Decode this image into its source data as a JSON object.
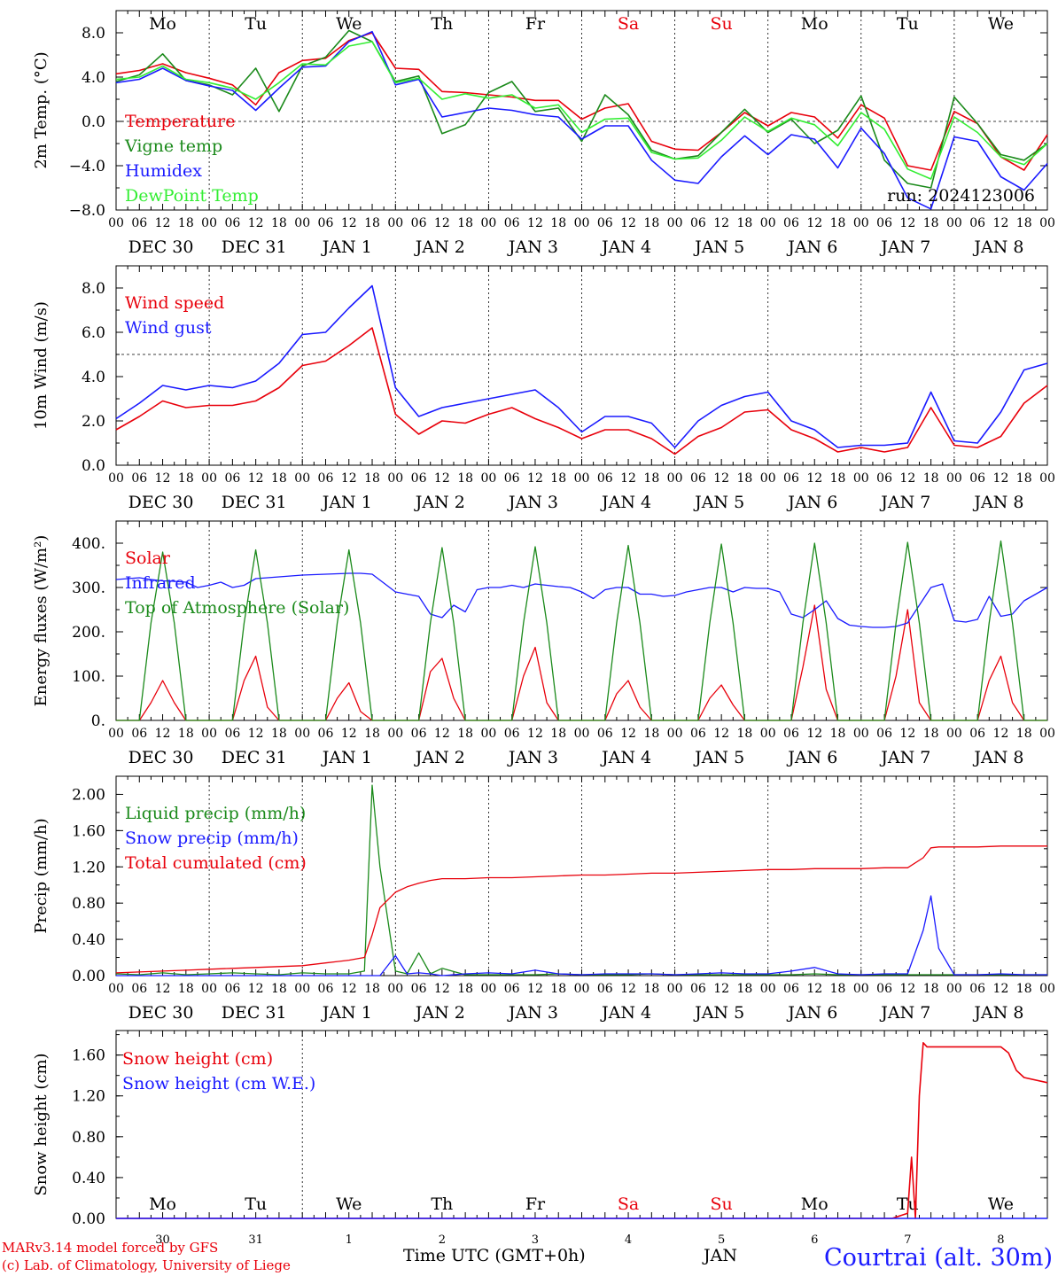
{
  "footer": {
    "model": "MARv3.14 model forced by GFS",
    "lab": "(c) Lab. of Climatology, University of Liege",
    "time_label": "Time UTC (GMT+0h)",
    "month_label": "JAN",
    "station": "Courtrai (alt. 30m)"
  },
  "days": [
    {
      "dow": "Mo",
      "date": "DEC 30",
      "num": "30",
      "weekend": false
    },
    {
      "dow": "Tu",
      "date": "DEC 31",
      "num": "31",
      "weekend": false
    },
    {
      "dow": "We",
      "date": "JAN 1",
      "num": "1",
      "weekend": false
    },
    {
      "dow": "Th",
      "date": "JAN 2",
      "num": "2",
      "weekend": false
    },
    {
      "dow": "Fr",
      "date": "JAN 3",
      "num": "3",
      "weekend": false
    },
    {
      "dow": "Sa",
      "date": "JAN 4",
      "num": "4",
      "weekend": true
    },
    {
      "dow": "Su",
      "date": "JAN 5",
      "num": "5",
      "weekend": true
    },
    {
      "dow": "Mo",
      "date": "JAN 6",
      "num": "6",
      "weekend": false
    },
    {
      "dow": "Tu",
      "date": "JAN 7",
      "num": "7",
      "weekend": false
    },
    {
      "dow": "We",
      "date": "JAN 8",
      "num": "8",
      "weekend": false
    }
  ],
  "hour_ticks": [
    "00",
    "06",
    "12",
    "18"
  ],
  "colors": {
    "red": "#e8000b",
    "green": "#1b8a1b",
    "blue": "#1a1aff",
    "lightgreen": "#33ee33"
  },
  "chart_data": [
    {
      "type": "line",
      "ylabel": "2m Temp. (°C)",
      "ylim": [
        -8,
        10
      ],
      "yticks": [
        "8.0",
        "4.0",
        "0.0",
        "−4.0",
        "−8.0"
      ],
      "ytick_values": [
        8,
        4,
        0,
        -4,
        -8
      ],
      "hline": 0,
      "annotation": "run: 2024123006",
      "x_hours": [
        0,
        6,
        12,
        18,
        24,
        30,
        36,
        42,
        48,
        54,
        60,
        66,
        72,
        78,
        84,
        90,
        96,
        102,
        108,
        114,
        120,
        126,
        132,
        138,
        144,
        150,
        156,
        162,
        168,
        174,
        180,
        186,
        192,
        198,
        204,
        210,
        216,
        222,
        228,
        234,
        240
      ],
      "series": [
        {
          "name": "Temperature",
          "color": "#e8000b",
          "values": [
            4.3,
            4.6,
            5.2,
            4.4,
            3.9,
            3.3,
            1.5,
            4.4,
            5.5,
            5.7,
            7.3,
            8.0,
            4.8,
            4.7,
            2.7,
            2.6,
            2.4,
            2.2,
            1.9,
            1.9,
            0.2,
            1.2,
            1.6,
            -1.8,
            -2.5,
            -2.6,
            -1.0,
            0.8,
            -0.4,
            0.8,
            0.4,
            -1.5,
            1.5,
            0.3,
            -4.0,
            -4.4,
            0.9,
            -0.2,
            -3.2,
            -4.4,
            -1.2
          ]
        },
        {
          "name": "Vigne temp",
          "color": "#1b8a1b",
          "values": [
            3.6,
            4.2,
            6.1,
            3.7,
            3.3,
            2.4,
            4.8,
            0.9,
            5.0,
            5.8,
            8.2,
            7.2,
            3.6,
            4.1,
            -1.1,
            -0.3,
            2.6,
            3.6,
            0.9,
            1.2,
            -1.8,
            2.4,
            0.6,
            -2.6,
            -3.4,
            -3.1,
            -1.0,
            1.1,
            -1.0,
            0.2,
            -2.0,
            -0.8,
            2.3,
            -3.5,
            -5.6,
            -6.0,
            2.2,
            -0.2,
            -3.0,
            -3.5,
            -2.0
          ]
        },
        {
          "name": "Humidex",
          "color": "#1a1aff",
          "values": [
            3.5,
            3.8,
            4.8,
            3.7,
            3.2,
            2.8,
            1.0,
            3.0,
            4.9,
            5.0,
            7.2,
            8.1,
            3.3,
            3.8,
            0.4,
            0.8,
            1.2,
            1.0,
            0.6,
            0.4,
            -1.6,
            -0.4,
            -0.4,
            -3.5,
            -5.3,
            -5.6,
            -3.2,
            -1.3,
            -3.0,
            -1.2,
            -1.6,
            -4.2,
            -0.6,
            -2.9,
            -6.9,
            -7.9,
            -1.4,
            -1.8,
            -5.0,
            -6.2,
            -3.8
          ]
        },
        {
          "name": "DewPoint Temp",
          "color": "#33ee33",
          "values": [
            3.8,
            4.0,
            5.0,
            3.8,
            3.5,
            3.0,
            2.0,
            3.5,
            5.2,
            5.1,
            6.8,
            7.2,
            3.5,
            3.9,
            2.0,
            2.5,
            2.1,
            2.4,
            1.2,
            1.5,
            -1.0,
            0.2,
            0.3,
            -2.8,
            -3.4,
            -3.3,
            -1.7,
            0.4,
            -0.9,
            0.3,
            -0.3,
            -2.2,
            0.8,
            -0.7,
            -4.3,
            -5.2,
            0.4,
            -1.0,
            -3.2,
            -3.9,
            -2.0
          ]
        }
      ]
    },
    {
      "type": "line",
      "ylabel": "10m Wind (m/s)",
      "ylim": [
        0,
        9
      ],
      "yticks": [
        "8.0",
        "6.0",
        "4.0",
        "2.0",
        "0.0"
      ],
      "ytick_values": [
        8,
        6,
        4,
        2,
        0
      ],
      "hline": 5,
      "x_hours": [
        0,
        6,
        12,
        18,
        24,
        30,
        36,
        42,
        48,
        54,
        60,
        66,
        72,
        78,
        84,
        90,
        96,
        102,
        108,
        114,
        120,
        126,
        132,
        138,
        144,
        150,
        156,
        162,
        168,
        174,
        180,
        186,
        192,
        198,
        204,
        210,
        216,
        222,
        228,
        234,
        240
      ],
      "series": [
        {
          "name": "Wind speed",
          "color": "#e8000b",
          "values": [
            1.6,
            2.2,
            2.9,
            2.6,
            2.7,
            2.7,
            2.9,
            3.5,
            4.5,
            4.7,
            5.4,
            6.2,
            2.3,
            1.4,
            2.0,
            1.9,
            2.3,
            2.6,
            2.1,
            1.7,
            1.2,
            1.6,
            1.6,
            1.2,
            0.5,
            1.3,
            1.7,
            2.4,
            2.5,
            1.6,
            1.2,
            0.6,
            0.8,
            0.6,
            0.8,
            2.6,
            0.9,
            0.8,
            1.3,
            2.8,
            3.6
          ]
        },
        {
          "name": "Wind gust",
          "color": "#1a1aff",
          "values": [
            2.1,
            2.8,
            3.6,
            3.4,
            3.6,
            3.5,
            3.8,
            4.6,
            5.9,
            6.0,
            7.1,
            8.1,
            3.5,
            2.2,
            2.6,
            2.8,
            3.0,
            3.2,
            3.4,
            2.6,
            1.5,
            2.2,
            2.2,
            1.9,
            0.8,
            2.0,
            2.7,
            3.1,
            3.3,
            2.0,
            1.6,
            0.8,
            0.9,
            0.9,
            1.0,
            3.3,
            1.1,
            1.0,
            2.4,
            4.3,
            4.6
          ]
        }
      ]
    },
    {
      "type": "line",
      "ylabel": "Energy fluxes (W/m²)",
      "ylim": [
        0,
        450
      ],
      "yticks": [
        "400.",
        "300.",
        "200.",
        "100.",
        "0."
      ],
      "ytick_values": [
        400,
        300,
        200,
        100,
        0
      ],
      "hline": null,
      "x_hours": [
        0,
        3,
        6,
        9,
        12,
        15,
        18,
        21,
        24,
        27,
        30,
        33,
        36,
        39,
        42,
        45,
        48,
        51,
        54,
        57,
        60,
        63,
        66,
        69,
        72,
        75,
        78,
        81,
        84,
        87,
        90,
        93,
        96,
        99,
        102,
        105,
        108,
        111,
        114,
        117,
        120,
        123,
        126,
        129,
        132,
        135,
        138,
        141,
        144,
        147,
        150,
        153,
        156,
        159,
        162,
        165,
        168,
        171,
        174,
        177,
        180,
        183,
        186,
        189,
        192,
        195,
        198,
        201,
        204,
        207,
        210,
        213,
        216,
        219,
        222,
        225,
        228,
        231,
        234,
        237,
        240
      ],
      "series": [
        {
          "name": "Solar",
          "color": "#e8000b",
          "values": [
            0,
            0,
            0,
            40,
            90,
            40,
            0,
            0,
            0,
            0,
            0,
            90,
            145,
            30,
            0,
            0,
            0,
            0,
            0,
            50,
            85,
            20,
            0,
            0,
            0,
            0,
            0,
            110,
            140,
            50,
            0,
            0,
            0,
            0,
            0,
            100,
            165,
            40,
            0,
            0,
            0,
            0,
            0,
            60,
            90,
            30,
            0,
            0,
            0,
            0,
            0,
            50,
            80,
            35,
            0,
            0,
            0,
            0,
            0,
            120,
            260,
            70,
            0,
            0,
            0,
            0,
            0,
            100,
            250,
            40,
            0,
            0,
            0,
            0,
            0,
            90,
            145,
            40,
            0,
            0,
            0
          ]
        },
        {
          "name": "Infrared",
          "color": "#1a1aff",
          "values": [
            318,
            320,
            322,
            318,
            315,
            314,
            312,
            300,
            305,
            312,
            300,
            305,
            320,
            322,
            324,
            326,
            328,
            329,
            330,
            331,
            332,
            332,
            330,
            310,
            290,
            285,
            280,
            240,
            232,
            260,
            245,
            295,
            300,
            300,
            305,
            300,
            308,
            305,
            302,
            300,
            290,
            275,
            295,
            300,
            300,
            285,
            285,
            280,
            282,
            290,
            295,
            300,
            300,
            290,
            300,
            298,
            298,
            290,
            240,
            232,
            250,
            270,
            230,
            215,
            212,
            210,
            210,
            212,
            220,
            260,
            300,
            308,
            225,
            222,
            228,
            280,
            235,
            240,
            270,
            285,
            300
          ]
        },
        {
          "name": "Top of Atmosphere (Solar)",
          "color": "#1b8a1b",
          "values": [
            0,
            0,
            0,
            220,
            380,
            220,
            0,
            0,
            0,
            0,
            0,
            220,
            385,
            220,
            0,
            0,
            0,
            0,
            0,
            220,
            385,
            220,
            0,
            0,
            0,
            0,
            0,
            220,
            390,
            220,
            0,
            0,
            0,
            0,
            0,
            220,
            392,
            220,
            0,
            0,
            0,
            0,
            0,
            220,
            395,
            220,
            0,
            0,
            0,
            0,
            0,
            220,
            398,
            220,
            0,
            0,
            0,
            0,
            0,
            220,
            400,
            220,
            0,
            0,
            0,
            0,
            0,
            220,
            402,
            220,
            0,
            0,
            0,
            0,
            0,
            220,
            405,
            220,
            0,
            0,
            0
          ]
        }
      ]
    },
    {
      "type": "line",
      "ylabel": "Precip (mm/h)",
      "ylim": [
        0,
        2.2
      ],
      "yticks": [
        "2.00",
        "1.60",
        "1.20",
        "0.80",
        "0.40",
        "0.00"
      ],
      "ytick_values": [
        2.0,
        1.6,
        1.2,
        0.8,
        0.4,
        0.0
      ],
      "hline": null,
      "x_hours": [
        0,
        6,
        12,
        18,
        24,
        30,
        36,
        42,
        48,
        54,
        60,
        64,
        66,
        68,
        72,
        75,
        78,
        81,
        84,
        90,
        96,
        102,
        108,
        114,
        120,
        126,
        132,
        138,
        144,
        150,
        156,
        162,
        168,
        174,
        180,
        186,
        192,
        198,
        204,
        208,
        210,
        212,
        216,
        222,
        228,
        234,
        240
      ],
      "series": [
        {
          "name": "Liquid precip (mm/h)",
          "color": "#1b8a1b",
          "values": [
            0.02,
            0.01,
            0.03,
            0.01,
            0.02,
            0.03,
            0.02,
            0.01,
            0.03,
            0.02,
            0.02,
            0.05,
            2.1,
            1.2,
            0.05,
            0.02,
            0.25,
            0.02,
            0.08,
            0.01,
            0.01,
            0.01,
            0.01,
            0.02,
            0.01,
            0.01,
            0.01,
            0.02,
            0.01,
            0.01,
            0.01,
            0.01,
            0.01,
            0.01,
            0.02,
            0.01,
            0.01,
            0.01,
            0.01,
            0.01,
            0.01,
            0.01,
            0.01,
            0.01,
            0.01,
            0.01,
            0.01
          ]
        },
        {
          "name": "Snow precip (mm/h)",
          "color": "#1a1aff",
          "values": [
            0.0,
            0.0,
            0.0,
            0.0,
            0.0,
            0.0,
            0.0,
            0.0,
            0.0,
            0.0,
            0.0,
            0.0,
            0.0,
            0.0,
            0.22,
            0.02,
            0.03,
            0.02,
            0.0,
            0.02,
            0.03,
            0.02,
            0.06,
            0.02,
            0.01,
            0.02,
            0.02,
            0.02,
            0.01,
            0.02,
            0.03,
            0.02,
            0.02,
            0.05,
            0.09,
            0.02,
            0.01,
            0.02,
            0.02,
            0.5,
            0.88,
            0.3,
            0.01,
            0.01,
            0.02,
            0.01,
            0.01
          ]
        },
        {
          "name": "Total cumulated (cm)",
          "color": "#e8000b",
          "values": [
            0.03,
            0.04,
            0.05,
            0.06,
            0.07,
            0.08,
            0.09,
            0.1,
            0.11,
            0.14,
            0.17,
            0.2,
            0.45,
            0.75,
            0.92,
            0.98,
            1.02,
            1.05,
            1.07,
            1.07,
            1.08,
            1.08,
            1.09,
            1.1,
            1.11,
            1.11,
            1.12,
            1.13,
            1.13,
            1.14,
            1.15,
            1.16,
            1.17,
            1.17,
            1.18,
            1.18,
            1.18,
            1.19,
            1.19,
            1.3,
            1.41,
            1.42,
            1.42,
            1.42,
            1.43,
            1.43,
            1.43
          ]
        }
      ]
    },
    {
      "type": "line",
      "ylabel": "Snow height (cm)",
      "ylim": [
        0,
        1.84
      ],
      "yticks": [
        "1.60",
        "1.20",
        "0.80",
        "0.40",
        "0.00"
      ],
      "ytick_values": [
        1.6,
        1.2,
        0.8,
        0.4,
        0.0
      ],
      "hline": null,
      "x_hours": [
        0,
        200,
        204,
        205,
        206,
        207,
        208,
        209,
        210,
        216,
        222,
        228,
        230,
        232,
        234,
        240
      ],
      "series": [
        {
          "name": "Snow height (cm)",
          "color": "#e8000b",
          "values": [
            0,
            0,
            0.05,
            0.6,
            0.0,
            1.2,
            1.72,
            1.68,
            1.68,
            1.68,
            1.68,
            1.68,
            1.62,
            1.45,
            1.38,
            1.33
          ]
        },
        {
          "name": "Snow height (cm W.E.)",
          "color": "#1a1aff",
          "values": [
            0,
            0,
            0,
            0,
            0,
            0,
            0,
            0,
            0,
            0,
            0,
            0,
            0,
            0,
            0,
            0
          ]
        }
      ]
    }
  ]
}
